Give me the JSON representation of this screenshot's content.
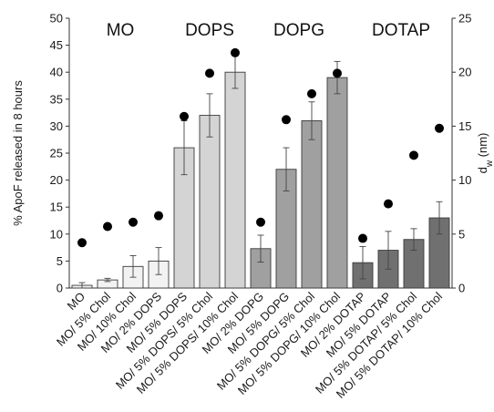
{
  "chart_data": {
    "type": "bar",
    "ylabel": "% ApoF released in 8 hours",
    "y2label": "d",
    "y2label_sub": "w",
    "y2label_unit": " (nm)",
    "ylim": [
      0,
      50
    ],
    "y2lim": [
      0,
      25
    ],
    "yticks": [
      0,
      5,
      10,
      15,
      20,
      25,
      30,
      35,
      40,
      45,
      50
    ],
    "y2ticks": [
      0,
      5,
      10,
      15,
      20,
      25
    ],
    "groups": [
      {
        "label": "MO",
        "first": 0,
        "last": 3
      },
      {
        "label": "DOPS",
        "first": 4,
        "last": 6
      },
      {
        "label": "DOPG",
        "first": 7,
        "last": 10
      },
      {
        "label": "DOTAP",
        "first": 11,
        "last": 14
      }
    ],
    "categories": [
      "MO",
      "MO/ 5% Chol",
      "MO/ 10% Chol",
      "MO/ 2% DOPS",
      "MO/ 5% DOPS",
      "MO/ 5% DOPS/ 5% Chol",
      "MO/ 5% DOPS/ 10% Chol",
      "MO/ 2% DOPG",
      "MO/ 5% DOPG",
      "MO/ 5% DOPG/ 5% Chol",
      "MO/ 5% DOPG/ 10% Chol",
      "MO/ 2% DOTAP",
      "MO/ 5% DOTAP",
      "MO/ 5% DOTAP/ 5% Chol",
      "MO/ 5% DOTAP/ 10% Chol"
    ],
    "series": [
      {
        "values": [
          0.5,
          1.5,
          4.0,
          5.0,
          26.0,
          32.0,
          40.0,
          7.3,
          22.0,
          31.0,
          39.0,
          4.7,
          7.0,
          9.0,
          13.0
        ],
        "errors": [
          0.5,
          0.3,
          2.0,
          2.5,
          5.0,
          4.0,
          3.0,
          2.5,
          4.0,
          3.5,
          3.0,
          3.0,
          3.5,
          2.0,
          3.0
        ],
        "colors": [
          "#f2f2f2",
          "#f2f2f2",
          "#f2f2f2",
          "#f2f2f2",
          "#d4d4d4",
          "#d4d4d4",
          "#d4d4d4",
          "#a0a0a0",
          "#a0a0a0",
          "#a0a0a0",
          "#a0a0a0",
          "#707070",
          "#707070",
          "#707070",
          "#707070"
        ]
      },
      {
        "axis": "right",
        "values": [
          4.2,
          5.7,
          6.1,
          6.7,
          15.9,
          19.9,
          21.8,
          6.1,
          15.6,
          18.0,
          19.9,
          4.6,
          7.8,
          12.3,
          14.8
        ]
      }
    ]
  }
}
